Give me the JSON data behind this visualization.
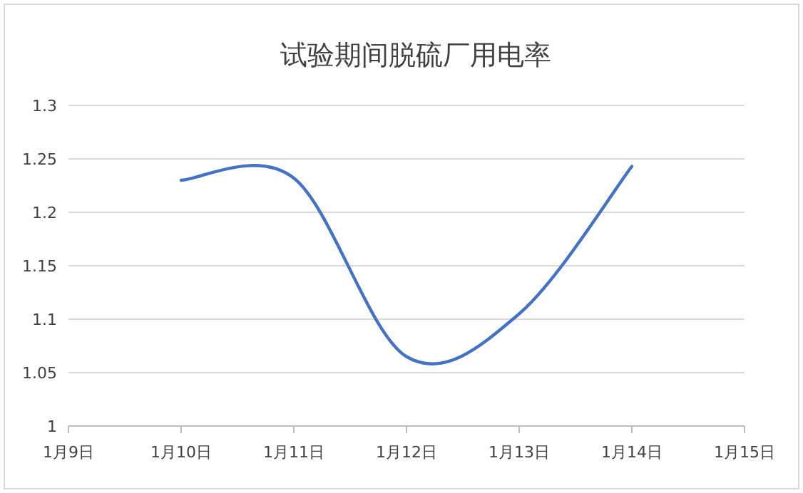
{
  "chart_data": {
    "type": "line",
    "title": "试验期间脱硫厂用电率",
    "categories": [
      "1月9日",
      "1月10日",
      "1月11日",
      "1月12日",
      "1月13日",
      "1月14日",
      "1月15日"
    ],
    "series": [
      {
        "color": "#4472c4",
        "values": [
          null,
          1.23,
          1.232,
          1.065,
          1.105,
          1.243,
          null
        ]
      }
    ],
    "ylim": [
      1,
      1.3
    ],
    "yticks": [
      1,
      1.05,
      1.1,
      1.15,
      1.2,
      1.25,
      1.3
    ],
    "grid": "y",
    "marker": "none",
    "line_style": "solid"
  }
}
